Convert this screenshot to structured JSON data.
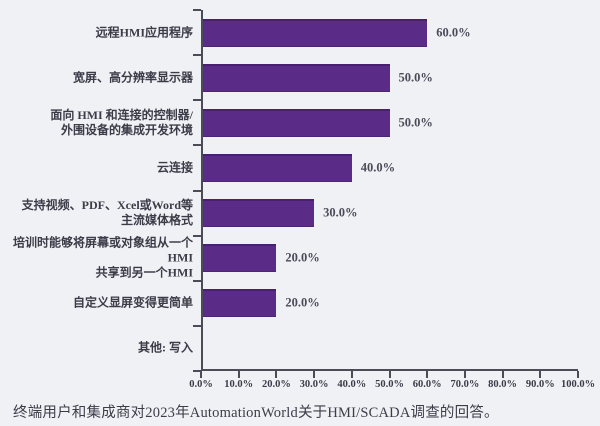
{
  "colors": {
    "background": "#f0f1f5",
    "bar": "#5a2b87",
    "axis": "#4c4c59",
    "text": "#3c3c49"
  },
  "chart_data": {
    "type": "bar",
    "orientation": "horizontal",
    "title": "",
    "xlabel": "",
    "ylabel": "",
    "xlim": [
      0,
      100
    ],
    "grid": false,
    "legend": null,
    "categories": [
      "远程HMI应用程序",
      "宽屏、高分辨率显示器",
      "面向 HMI 和连接的控制器/\n外围设备的集成开发环境",
      "云连接",
      "支持视频、PDF、Xcel或Word等\n主流媒体格式",
      "培训时能够将屏幕或对象组从一个HMI\n共享到另一个HMI",
      "自定义显屏变得更简单",
      "其他: 写入"
    ],
    "values": [
      60.0,
      50.0,
      50.0,
      40.0,
      30.0,
      20.0,
      20.0,
      null
    ],
    "value_labels": [
      "60.0%",
      "50.0%",
      "50.0%",
      "40.0%",
      "30.0%",
      "20.0%",
      "20.0%",
      ""
    ],
    "x_ticks": [
      "0.0%",
      "10.0%",
      "20.0%",
      "30.0%",
      "40.0%",
      "50.0%",
      "60.0%",
      "70.0%",
      "80.0%",
      "90.0%",
      "100.0%"
    ],
    "caption": "终端用户和集成商对2023年AutomationWorld关于HMI/SCADA调查的回答。"
  }
}
